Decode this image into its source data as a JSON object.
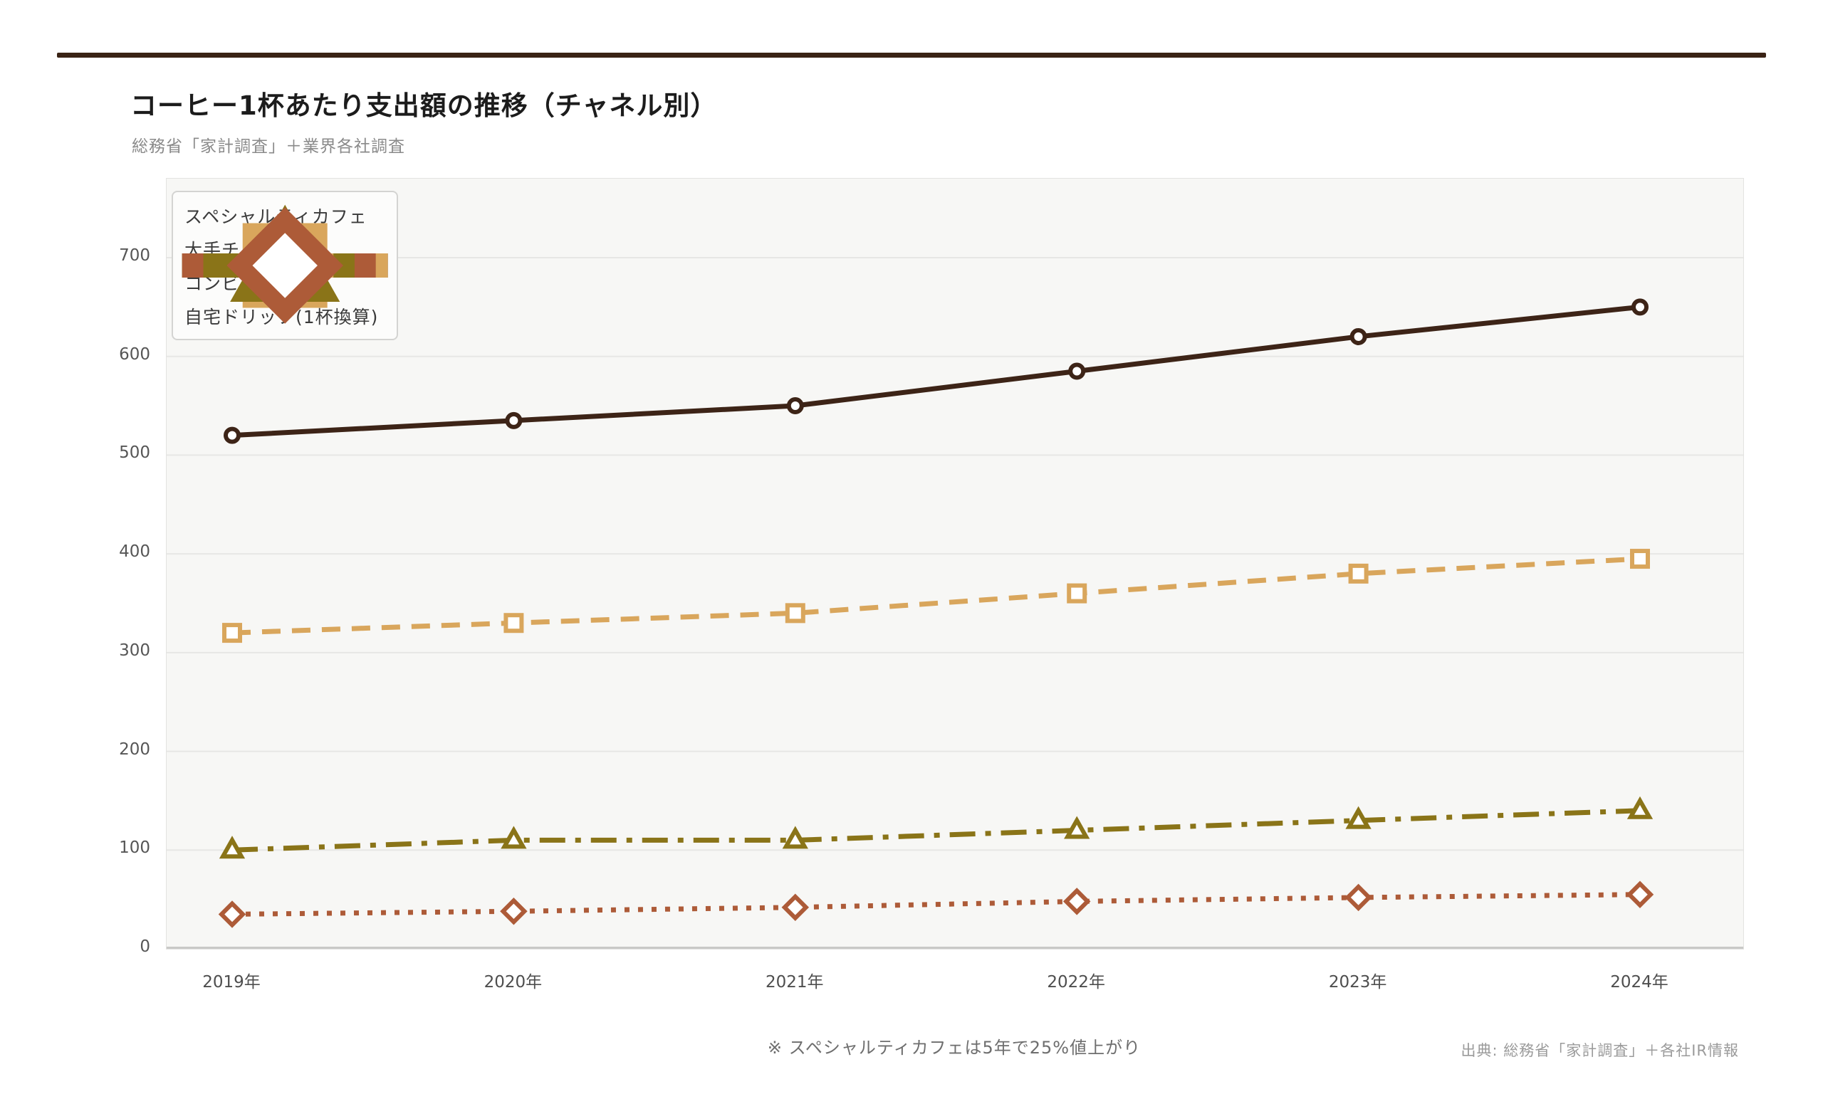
{
  "page": {
    "title": "コーヒー1杯あたり支出額の推移（チャネル別）",
    "subtitle": "総務省「家計調査」＋業界各社調査",
    "footnote": "※ スペシャルティカフェは5年で25%値上がり",
    "source": "出典: 総務省「家計調査」＋各社IR情報",
    "accent_rule_color": "#3a2315"
  },
  "chart_data": {
    "type": "line",
    "title": "コーヒー1杯あたり支出額の推移（チャネル別）",
    "subtitle": "総務省「家計調査」＋業界各社調査",
    "categories": [
      "2019年",
      "2020年",
      "2021年",
      "2022年",
      "2023年",
      "2024年"
    ],
    "series": [
      {
        "name": "スペシャルティカフェ",
        "values": [
          520,
          535,
          550,
          585,
          620,
          650
        ],
        "color": "#3d2417",
        "line_style": "solid",
        "marker": "circle"
      },
      {
        "name": "大手チェーン",
        "values": [
          320,
          330,
          340,
          360,
          380,
          395
        ],
        "color": "#d9a65c",
        "line_style": "dashed",
        "marker": "square"
      },
      {
        "name": "コンビニ",
        "values": [
          100,
          110,
          110,
          120,
          130,
          140
        ],
        "color": "#8a7418",
        "line_style": "dashdot",
        "marker": "triangle"
      },
      {
        "name": "自宅ドリップ(1杯換算)",
        "values": [
          35,
          38,
          42,
          48,
          52,
          55
        ],
        "color": "#ad5b38",
        "line_style": "dotted",
        "marker": "diamond"
      }
    ],
    "xlabel": "",
    "ylabel": "",
    "ylim": [
      0,
      780
    ],
    "yticks": [
      0,
      100,
      200,
      300,
      400,
      500,
      600,
      700
    ],
    "grid": true,
    "gridline_color": "#e7e7e5",
    "plot_bg": "#f7f7f5",
    "legend_position": "upper-left"
  }
}
